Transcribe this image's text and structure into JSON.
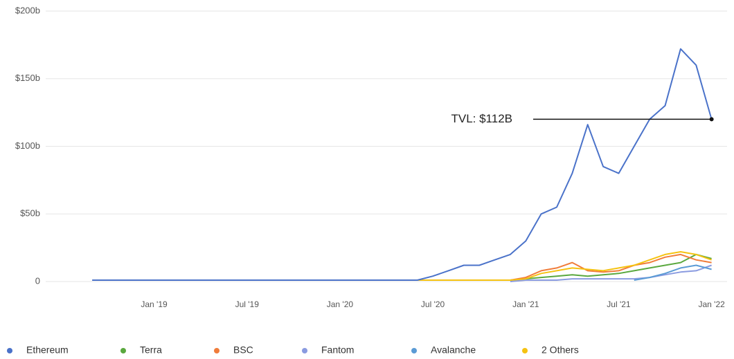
{
  "chart_data": {
    "type": "line",
    "annotation": "TVL: $112B",
    "x": [
      "2018-09",
      "2018-10",
      "2018-11",
      "2018-12",
      "2019-01",
      "2019-02",
      "2019-03",
      "2019-04",
      "2019-05",
      "2019-06",
      "2019-07",
      "2019-08",
      "2019-09",
      "2019-10",
      "2019-11",
      "2019-12",
      "2020-01",
      "2020-02",
      "2020-03",
      "2020-04",
      "2020-05",
      "2020-06",
      "2020-07",
      "2020-08",
      "2020-09",
      "2020-10",
      "2020-11",
      "2020-12",
      "2021-01",
      "2021-02",
      "2021-03",
      "2021-04",
      "2021-05",
      "2021-06",
      "2021-07",
      "2021-08",
      "2021-09",
      "2021-10",
      "2021-11",
      "2021-12",
      "2022-01"
    ],
    "series": [
      {
        "name": "Ethereum",
        "color": "#4a72c9",
        "values": [
          1,
          1,
          1,
          1,
          1,
          1,
          1,
          1,
          1,
          1,
          1,
          1,
          1,
          1,
          1,
          1,
          1,
          1,
          1,
          1,
          1,
          1,
          4,
          8,
          12,
          12,
          16,
          20,
          30,
          50,
          55,
          80,
          116,
          85,
          80,
          100,
          120,
          130,
          172,
          160,
          120
        ]
      },
      {
        "name": "Terra",
        "color": "#5aa83e",
        "values": [
          null,
          null,
          null,
          null,
          null,
          null,
          null,
          null,
          null,
          null,
          null,
          null,
          null,
          null,
          null,
          null,
          null,
          null,
          null,
          null,
          null,
          null,
          null,
          null,
          null,
          null,
          null,
          1,
          2,
          3,
          4,
          5,
          4,
          5,
          6,
          8,
          10,
          12,
          14,
          20,
          17
        ]
      },
      {
        "name": "BSC",
        "color": "#f07c3a",
        "values": [
          null,
          null,
          null,
          null,
          null,
          null,
          null,
          null,
          null,
          null,
          null,
          null,
          null,
          null,
          null,
          null,
          null,
          null,
          null,
          null,
          null,
          null,
          null,
          null,
          null,
          null,
          null,
          1,
          3,
          8,
          10,
          14,
          8,
          7,
          8,
          12,
          14,
          18,
          20,
          16,
          14
        ]
      },
      {
        "name": "Fantom",
        "color": "#8a9be0",
        "values": [
          null,
          null,
          null,
          null,
          null,
          null,
          null,
          null,
          null,
          null,
          null,
          null,
          null,
          null,
          null,
          null,
          null,
          null,
          null,
          null,
          null,
          null,
          null,
          null,
          null,
          null,
          null,
          0,
          1,
          1,
          1,
          2,
          2,
          2,
          2,
          2,
          3,
          5,
          7,
          8,
          12
        ]
      },
      {
        "name": "Avalanche",
        "color": "#5b9bd5",
        "values": [
          null,
          null,
          null,
          null,
          null,
          null,
          null,
          null,
          null,
          null,
          null,
          null,
          null,
          null,
          null,
          null,
          null,
          null,
          null,
          null,
          null,
          null,
          null,
          null,
          null,
          null,
          null,
          null,
          null,
          null,
          null,
          null,
          null,
          null,
          null,
          1,
          3,
          6,
          10,
          12,
          9
        ]
      },
      {
        "name": "2 Others",
        "color": "#f5c211",
        "values": [
          null,
          null,
          null,
          null,
          null,
          null,
          null,
          null,
          null,
          null,
          null,
          null,
          null,
          null,
          null,
          null,
          null,
          null,
          null,
          null,
          null,
          1,
          1,
          1,
          1,
          1,
          1,
          1,
          2,
          6,
          8,
          10,
          9,
          8,
          10,
          12,
          16,
          20,
          22,
          20,
          16
        ]
      }
    ],
    "xlim": [
      "2018-06",
      "2022-02"
    ],
    "xticks": [
      {
        "value": "2019-01",
        "label": "Jan '19"
      },
      {
        "value": "2019-07",
        "label": "Jul '19"
      },
      {
        "value": "2020-01",
        "label": "Jan '20"
      },
      {
        "value": "2020-07",
        "label": "Jul '20"
      },
      {
        "value": "2021-01",
        "label": "Jan '21"
      },
      {
        "value": "2021-07",
        "label": "Jul '21"
      },
      {
        "value": "2022-01",
        "label": "Jan '22"
      }
    ],
    "ylim": [
      0,
      200
    ],
    "yticks": [
      0,
      {
        "value": 50,
        "label": "$50b"
      },
      {
        "value": 100,
        "label": "$100b"
      },
      {
        "value": 150,
        "label": "$150b"
      },
      {
        "value": 200,
        "label": "$200b"
      }
    ],
    "grid": true
  }
}
